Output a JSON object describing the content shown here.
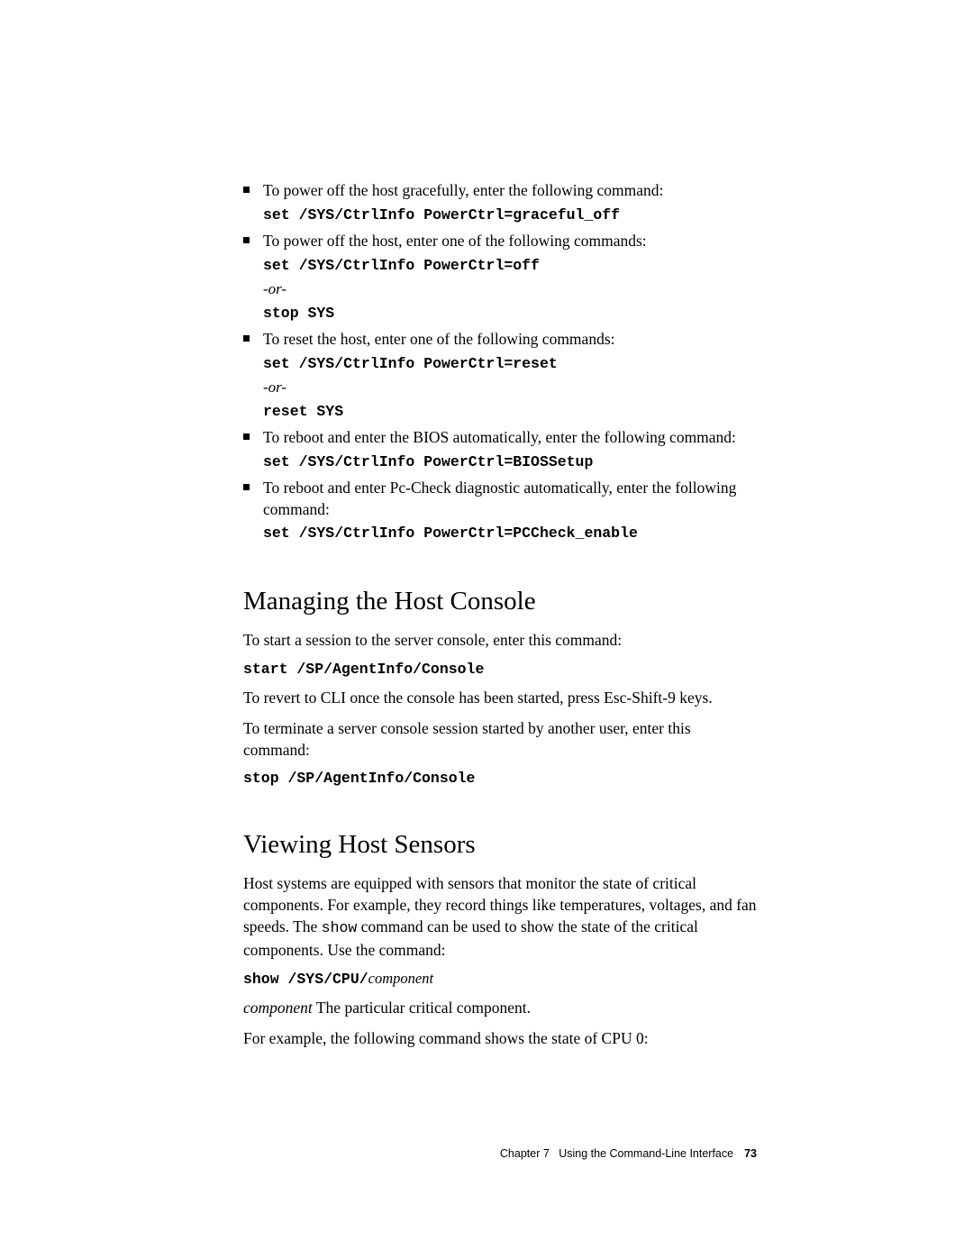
{
  "bullets": [
    {
      "text": "To power off the host gracefully, enter the following command:",
      "cmds": [
        "set /SYS/CtrlInfo PowerCtrl=graceful_off"
      ]
    },
    {
      "text": "To power off the host, enter one of the following commands:",
      "cmds": [
        "set /SYS/CtrlInfo PowerCtrl=off"
      ],
      "or": "-or-",
      "cmds2": [
        "stop SYS"
      ]
    },
    {
      "text": "To reset the host, enter one of the following commands:",
      "cmds": [
        "set /SYS/CtrlInfo PowerCtrl=reset"
      ],
      "or": "-or-",
      "cmds2": [
        "reset SYS"
      ]
    },
    {
      "text": "To reboot and enter the BIOS automatically, enter the following command:",
      "cmds": [
        "set /SYS/CtrlInfo PowerCtrl=BIOSSetup"
      ]
    },
    {
      "text": "To reboot and enter Pc-Check diagnostic automatically, enter the following command:",
      "cmds": [
        "set /SYS/CtrlInfo PowerCtrl=PCCheck_enable"
      ]
    }
  ],
  "section1": {
    "title": "Managing the Host Console",
    "p1": "To start a session to the server console, enter this command:",
    "cmd1": "start /SP/AgentInfo/Console",
    "p2": "To revert to CLI once the console has been started, press Esc-Shift-9 keys.",
    "p3": "To terminate a server console session started by another user, enter this command:",
    "cmd2": "stop /SP/AgentInfo/Console"
  },
  "section2": {
    "title": "Viewing Host Sensors",
    "p1_pre": "Host systems are equipped with sensors that monitor the state of critical components. For example, they record things like temperatures, voltages, and fan speeds. The ",
    "p1_mono": "show",
    "p1_post": " command can be used to show the state of the critical components. Use the command:",
    "cmd_prefix": "show /SYS/CPU/",
    "cmd_param": "component",
    "desc_term": "component",
    "desc_text": " The particular critical component.",
    "p2": "For example, the following command shows the state of CPU 0:"
  },
  "footer": {
    "chapter": "Chapter 7",
    "title": "Using the Command-Line Interface",
    "page": "73"
  }
}
